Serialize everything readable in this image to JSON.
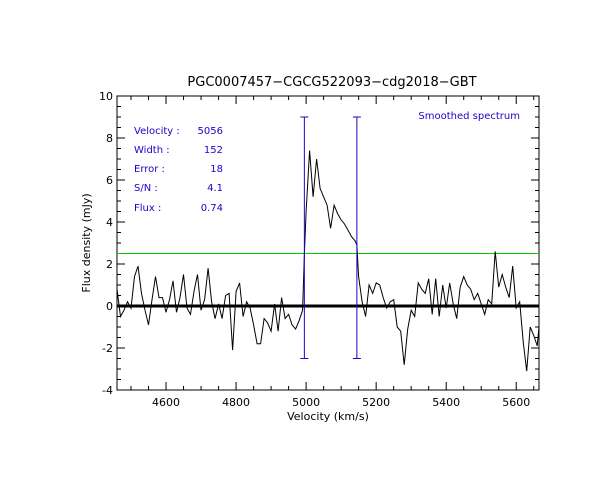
{
  "chart_data": {
    "type": "line",
    "title": "PGC0007457−CGCG522093−cdg2018−GBT",
    "xlabel": "Velocity (km/s)",
    "ylabel": "Flux density (mJy)",
    "xlim": [
      4460,
      5665
    ],
    "ylim": [
      -4,
      10
    ],
    "xticks": [
      4600,
      4800,
      5000,
      5200,
      5400,
      5600
    ],
    "yticks": [
      -4,
      -2,
      0,
      2,
      4,
      6,
      8,
      10
    ],
    "legend_text": "Smoothed spectrum",
    "info_rows": [
      {
        "label": "Velocity :",
        "value": "5056"
      },
      {
        "label": "Width :",
        "value": "152"
      },
      {
        "label": "Error :",
        "value": "18"
      },
      {
        "label": "S/N :",
        "value": "4.1"
      },
      {
        "label": "Flux :",
        "value": "0.74"
      }
    ],
    "zero_line": 0,
    "threshold": {
      "y": 2.5,
      "color": "#00cc00"
    },
    "markers": {
      "x": [
        4995,
        5145
      ],
      "y_range": [
        -2.5,
        9
      ],
      "color": "#2200cc"
    },
    "colors": {
      "spectrum": "#000000",
      "info": "#2200cc"
    },
    "series": [
      {
        "x": [
          4460,
          4470,
          4480,
          4490,
          4500,
          4510,
          4520,
          4530,
          4540,
          4550,
          4560,
          4570,
          4580,
          4590,
          4600,
          4610,
          4620,
          4630,
          4640,
          4650,
          4660,
          4670,
          4680,
          4690,
          4700,
          4710,
          4720,
          4730,
          4740,
          4750,
          4760,
          4770,
          4780,
          4790,
          4800,
          4810,
          4820,
          4830,
          4840,
          4850,
          4860,
          4870,
          4880,
          4890,
          4900,
          4910,
          4920,
          4930,
          4940,
          4950,
          4960,
          4970,
          4980,
          4990,
          4995,
          5000,
          5010,
          5020,
          5030,
          5040,
          5050,
          5060,
          5070,
          5080,
          5090,
          5100,
          5110,
          5120,
          5130,
          5140,
          5145,
          5150,
          5160,
          5170,
          5180,
          5190,
          5200,
          5210,
          5220,
          5230,
          5240,
          5250,
          5260,
          5270,
          5280,
          5290,
          5300,
          5310,
          5320,
          5330,
          5340,
          5350,
          5360,
          5370,
          5380,
          5390,
          5400,
          5410,
          5420,
          5430,
          5440,
          5450,
          5460,
          5470,
          5480,
          5490,
          5500,
          5510,
          5520,
          5530,
          5540,
          5550,
          5560,
          5570,
          5580,
          5590,
          5600,
          5610,
          5620,
          5630,
          5640,
          5650,
          5660,
          5665
        ],
        "y": [
          0.8,
          -0.5,
          -0.2,
          0.2,
          -0.1,
          1.4,
          1.9,
          0.6,
          -0.2,
          -0.9,
          0.3,
          1.4,
          0.4,
          0.4,
          -0.3,
          0.3,
          1.2,
          -0.3,
          0.4,
          1.5,
          -0.1,
          -0.4,
          0.7,
          1.5,
          -0.2,
          0.3,
          1.8,
          0.2,
          -0.6,
          0.1,
          -0.6,
          0.5,
          0.6,
          -2.1,
          0.7,
          1.1,
          -0.5,
          0.2,
          -0.1,
          -0.9,
          -1.8,
          -1.8,
          -0.6,
          -0.8,
          -1.2,
          0.1,
          -1.2,
          0.4,
          -0.6,
          -0.4,
          -0.9,
          -1.1,
          -0.7,
          -0.2,
          2.5,
          4.5,
          7.4,
          5.2,
          7.0,
          5.6,
          5.2,
          4.8,
          3.7,
          4.8,
          4.4,
          4.1,
          3.9,
          3.6,
          3.3,
          3.1,
          2.9,
          1.4,
          0.2,
          -0.5,
          1.0,
          0.6,
          1.1,
          1.0,
          0.4,
          -0.1,
          0.2,
          0.3,
          -1.0,
          -1.2,
          -2.8,
          -1.1,
          -0.2,
          -0.5,
          1.1,
          0.8,
          0.6,
          1.3,
          -0.4,
          1.3,
          -0.5,
          1.0,
          -0.1,
          1.1,
          0.1,
          -0.6,
          0.9,
          1.4,
          1.0,
          0.8,
          0.3,
          0.6,
          0.1,
          -0.4,
          0.3,
          0.1,
          2.6,
          0.9,
          1.5,
          0.9,
          0.4,
          1.9,
          -0.1,
          0.2,
          -1.7,
          -3.1,
          -1.0,
          -1.4,
          -1.9,
          -1.0
        ]
      }
    ]
  }
}
